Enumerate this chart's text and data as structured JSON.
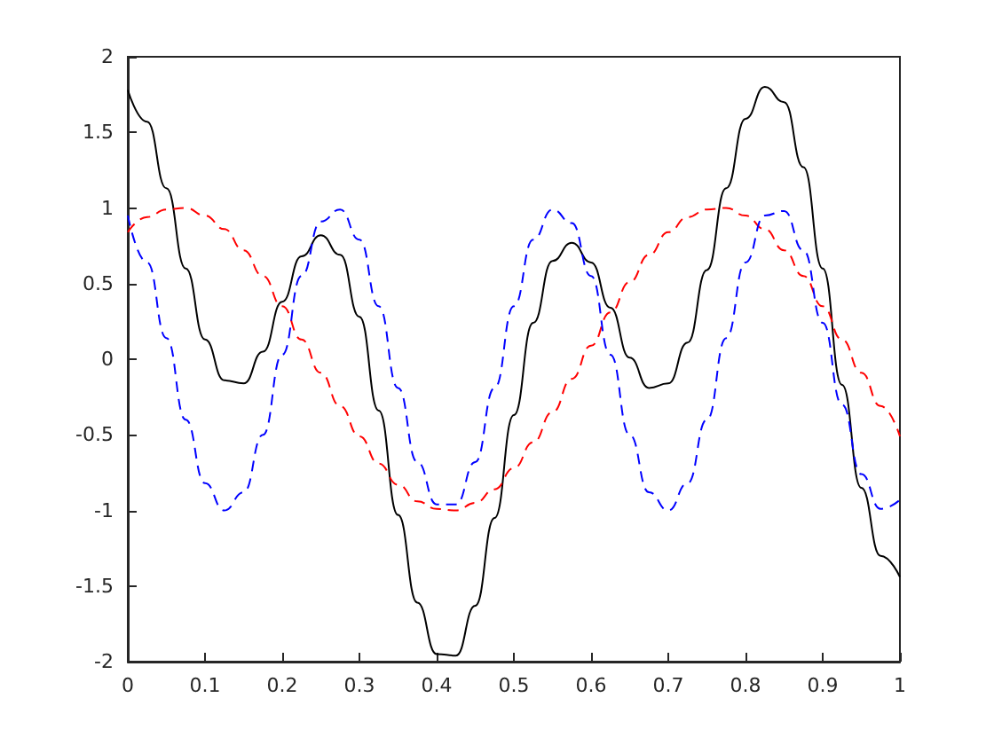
{
  "chart_data": {
    "type": "line",
    "x": [
      0,
      0.025,
      0.05,
      0.075,
      0.1,
      0.125,
      0.15,
      0.175,
      0.2,
      0.225,
      0.25,
      0.275,
      0.3,
      0.325,
      0.35,
      0.375,
      0.4,
      0.425,
      0.45,
      0.475,
      0.5,
      0.525,
      0.55,
      0.575,
      0.6,
      0.625,
      0.65,
      0.675,
      0.7,
      0.725,
      0.75,
      0.775,
      0.8,
      0.825,
      0.85,
      0.875,
      0.9,
      0.925,
      0.95,
      0.975,
      1
    ],
    "series": [
      {
        "color": "#000000",
        "line_style": "solid",
        "values": [
          1.78,
          1.57,
          1.13,
          0.6,
          0.13,
          -0.14,
          -0.16,
          0.05,
          0.38,
          0.68,
          0.82,
          0.69,
          0.28,
          -0.34,
          -1.03,
          -1.61,
          -1.95,
          -1.96,
          -1.63,
          -1.05,
          -0.37,
          0.24,
          0.65,
          0.77,
          0.64,
          0.34,
          0.01,
          -0.19,
          -0.16,
          0.11,
          0.59,
          1.13,
          1.59,
          1.8,
          1.7,
          1.27,
          0.6,
          -0.17,
          -0.85,
          -1.3,
          -1.44
        ]
      },
      {
        "color": "#ff0000",
        "line_style": "dashed",
        "values": [
          0.84,
          0.94,
          0.99,
          1,
          0.95,
          0.86,
          0.72,
          0.55,
          0.35,
          0.13,
          -0.09,
          -0.31,
          -0.51,
          -0.69,
          -0.83,
          -0.94,
          -0.99,
          -1,
          -0.95,
          -0.86,
          -0.72,
          -0.55,
          -0.35,
          -0.13,
          0.09,
          0.31,
          0.51,
          0.69,
          0.84,
          0.94,
          0.99,
          1,
          0.95,
          0.86,
          0.72,
          0.55,
          0.35,
          0.13,
          -0.09,
          -0.31,
          -0.51
        ]
      },
      {
        "color": "#0000ff",
        "line_style": "dashed",
        "values": [
          0.95,
          0.64,
          0.14,
          -0.4,
          -0.82,
          -1,
          -0.88,
          -0.5,
          0.03,
          0.55,
          0.91,
          0.99,
          0.79,
          0.35,
          -0.19,
          -0.68,
          -0.96,
          -0.96,
          -0.68,
          -0.19,
          0.35,
          0.79,
          0.99,
          0.9,
          0.55,
          0.03,
          -0.5,
          -0.88,
          -1,
          -0.82,
          -0.4,
          0.14,
          0.64,
          0.95,
          0.98,
          0.72,
          0.24,
          -0.3,
          -0.76,
          -0.99,
          -0.93
        ]
      }
    ],
    "xlim": [
      0,
      1
    ],
    "xticks": [
      0,
      0.1,
      0.2,
      0.3,
      0.4,
      0.5,
      0.6,
      0.7,
      0.8,
      0.9,
      1
    ],
    "ylim": [
      -2,
      2
    ],
    "yticks": [
      -2,
      -1.5,
      -1,
      -0.5,
      0,
      0.5,
      1,
      1.5,
      2
    ],
    "grid": false,
    "marker": "none"
  }
}
